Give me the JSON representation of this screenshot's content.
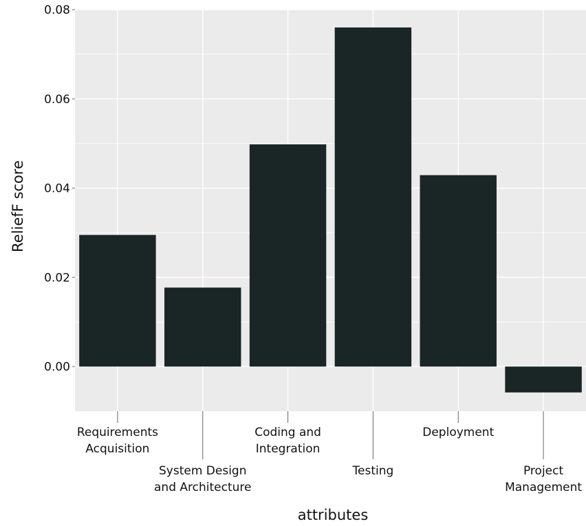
{
  "chart_data": {
    "type": "bar",
    "title": "",
    "xlabel": "attributes",
    "ylabel": "ReliefF score",
    "categories": [
      [
        "Requirements",
        "Acquisition"
      ],
      [
        "System Design",
        "and Architecture"
      ],
      [
        "Coding and",
        "Integration"
      ],
      [
        "Testing"
      ],
      [
        "Deployment"
      ],
      [
        "Project",
        "Management"
      ]
    ],
    "values": [
      0.0295,
      0.0177,
      0.0498,
      0.076,
      0.0429,
      -0.0058
    ],
    "ylim": [
      -0.01,
      0.08
    ],
    "yticks": [
      "0.00",
      "0.02",
      "0.04",
      "0.06",
      "0.08"
    ],
    "ytick_values": [
      0,
      0.02,
      0.04,
      0.06,
      0.08
    ],
    "grid": true,
    "legend": "none",
    "colors": {
      "panel": "#ebebeb",
      "grid": "#ffffff",
      "bar": "#1a2626",
      "text": "#111111",
      "tick": "#666666"
    }
  }
}
